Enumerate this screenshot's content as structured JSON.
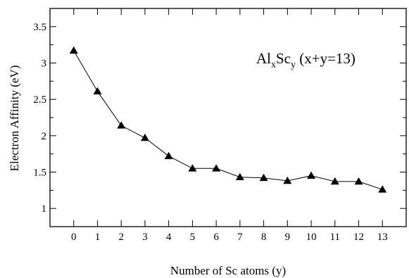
{
  "chart_data": {
    "type": "line",
    "x": [
      0,
      1,
      2,
      3,
      4,
      5,
      6,
      7,
      8,
      9,
      10,
      11,
      12,
      13
    ],
    "series": [
      {
        "values": [
          3.17,
          2.61,
          2.14,
          1.97,
          1.72,
          1.55,
          1.55,
          1.43,
          1.42,
          1.38,
          1.45,
          1.37,
          1.37,
          1.26
        ]
      }
    ],
    "xlabel": "Number of Sc atoms (y)",
    "ylabel": "Electron Affinity (eV)",
    "xlim": [
      -1,
      14
    ],
    "ylim": [
      0.75,
      3.75
    ],
    "xticks": [
      "0",
      "1",
      "2",
      "3",
      "4",
      "5",
      "6",
      "7",
      "8",
      "9",
      "10",
      "11",
      "12",
      "13"
    ],
    "yticks": [
      "1",
      "1.5",
      "2",
      "2.5",
      "3",
      "3.5"
    ],
    "annotation": {
      "main1": "Al",
      "sub1": "x",
      "main2": "Sc",
      "sub2": "y",
      "tail": " (x+y=13)"
    },
    "marker": "triangle",
    "grid": false,
    "line_color": "#000000"
  }
}
